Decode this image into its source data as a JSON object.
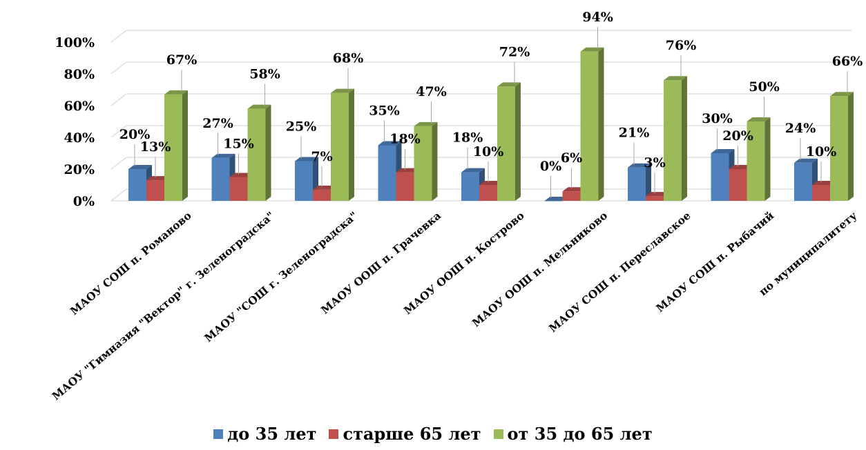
{
  "chart_data": {
    "type": "bar",
    "title": "",
    "xlabel": "",
    "ylabel": "",
    "ylim": [
      0,
      100
    ],
    "y_ticks": [
      0,
      20,
      40,
      60,
      80,
      100
    ],
    "y_tick_labels": [
      "0%",
      "20%",
      "40%",
      "60%",
      "80%",
      "100%"
    ],
    "grid": true,
    "legend_position": "bottom",
    "categories": [
      "МАОУ СОШ п. Романово",
      "МАОУ \"Гимназия \"Вектор\" г. Зеленоградска\"",
      "МАОУ \"СОШ г. Зеленоградска\"",
      "МАОУ ООШ п. Грачевка",
      "МАОУ ООШ п. Кострово",
      "МАОУ ООШ п. Мельниково",
      "МАОУ СОШ п. Переславское",
      "МАОУ СОШ п. Рыбачий",
      "по муниципалитету"
    ],
    "series": [
      {
        "name": "до 35 лет",
        "color": "#4f81bd",
        "values": [
          20,
          27,
          25,
          35,
          18,
          0,
          21,
          30,
          24
        ],
        "labels": [
          "20%",
          "27%",
          "25%",
          "35%",
          "18%",
          "0%",
          "21%",
          "30%",
          "24%"
        ]
      },
      {
        "name": "старше 65 лет",
        "color": "#c0504d",
        "values": [
          13,
          15,
          7,
          18,
          10,
          6,
          3,
          20,
          10
        ],
        "labels": [
          "13%",
          "15%",
          "7%",
          "18%",
          "10%",
          "6%",
          "3%",
          "20%",
          "10%"
        ]
      },
      {
        "name": "от 35 до 65 лет",
        "color": "#9bbb59",
        "values": [
          67,
          58,
          68,
          47,
          72,
          94,
          76,
          50,
          66
        ],
        "labels": [
          "67%",
          "58%",
          "68%",
          "47%",
          "72%",
          "94%",
          "76%",
          "50%",
          "66%"
        ]
      }
    ]
  }
}
